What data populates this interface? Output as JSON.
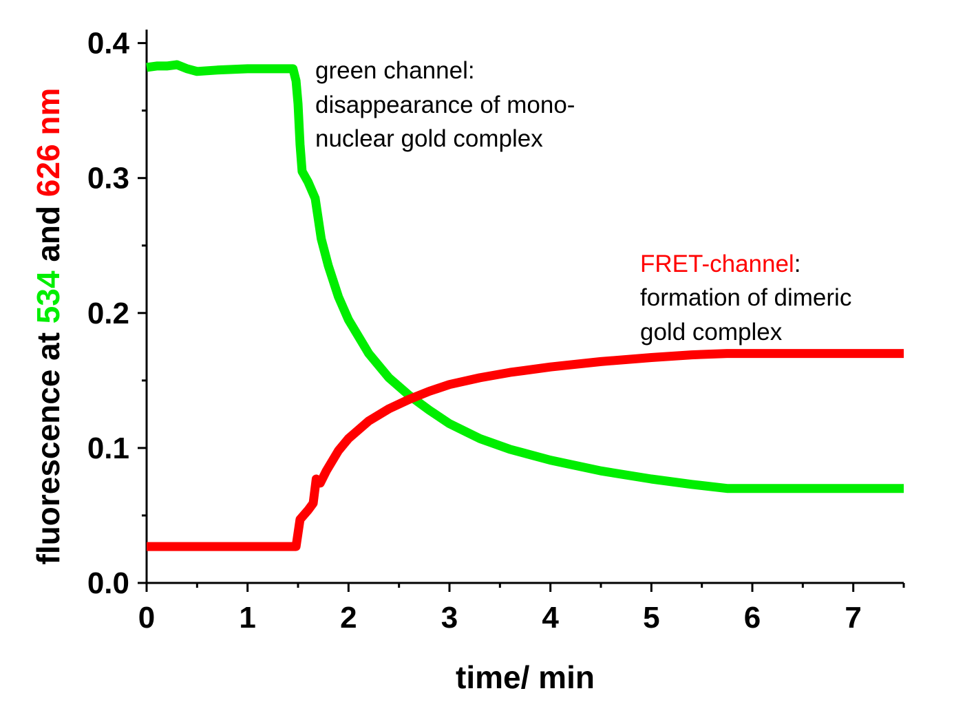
{
  "chart_data": {
    "type": "line",
    "xlabel": "time/ min",
    "ylabel": {
      "parts": [
        {
          "text": "fluorescence at ",
          "color": "#000000"
        },
        {
          "text": "534",
          "color": "#00ee00"
        },
        {
          "text": " and ",
          "color": "#000000"
        },
        {
          "text": "626 nm",
          "color": "#ff0000"
        }
      ]
    },
    "xlim": [
      0,
      7.5
    ],
    "ylim": [
      0,
      0.41
    ],
    "x_ticks": [
      0,
      1,
      2,
      3,
      4,
      5,
      6,
      7
    ],
    "x_tick_labels": [
      "0",
      "1",
      "2",
      "3",
      "4",
      "5",
      "6",
      "7"
    ],
    "y_ticks": [
      0.0,
      0.1,
      0.2,
      0.3,
      0.4
    ],
    "y_tick_labels": [
      "0.0",
      "0.1",
      "0.2",
      "0.3",
      "0.4"
    ],
    "grid": false,
    "legend": "none",
    "series": [
      {
        "name": "green channel",
        "color": "#00ee00",
        "points": [
          [
            0,
            0.382
          ],
          [
            0.1,
            0.383
          ],
          [
            0.2,
            0.383
          ],
          [
            0.3,
            0.384
          ],
          [
            0.4,
            0.381
          ],
          [
            0.5,
            0.379
          ],
          [
            0.7,
            0.38
          ],
          [
            1.0,
            0.381
          ],
          [
            1.3,
            0.381
          ],
          [
            1.45,
            0.381
          ],
          [
            1.48,
            0.372
          ],
          [
            1.5,
            0.355
          ],
          [
            1.52,
            0.325
          ],
          [
            1.54,
            0.305
          ],
          [
            1.6,
            0.297
          ],
          [
            1.67,
            0.285
          ],
          [
            1.73,
            0.255
          ],
          [
            1.8,
            0.235
          ],
          [
            1.9,
            0.212
          ],
          [
            2.0,
            0.195
          ],
          [
            2.2,
            0.17
          ],
          [
            2.4,
            0.152
          ],
          [
            2.6,
            0.139
          ],
          [
            2.8,
            0.128
          ],
          [
            3.0,
            0.118
          ],
          [
            3.3,
            0.107
          ],
          [
            3.6,
            0.099
          ],
          [
            4.0,
            0.091
          ],
          [
            4.5,
            0.083
          ],
          [
            5.0,
            0.077
          ],
          [
            5.4,
            0.073
          ],
          [
            5.75,
            0.07
          ],
          [
            6.2,
            0.07
          ],
          [
            7.0,
            0.07
          ],
          [
            7.5,
            0.07
          ]
        ]
      },
      {
        "name": "FRET-channel",
        "color": "#ff0000",
        "points": [
          [
            0,
            0.027
          ],
          [
            0.5,
            0.027
          ],
          [
            1.0,
            0.027
          ],
          [
            1.48,
            0.027
          ],
          [
            1.52,
            0.047
          ],
          [
            1.6,
            0.054
          ],
          [
            1.65,
            0.059
          ],
          [
            1.68,
            0.077
          ],
          [
            1.72,
            0.074
          ],
          [
            1.78,
            0.083
          ],
          [
            1.9,
            0.098
          ],
          [
            2.0,
            0.107
          ],
          [
            2.2,
            0.12
          ],
          [
            2.4,
            0.129
          ],
          [
            2.6,
            0.136
          ],
          [
            2.8,
            0.142
          ],
          [
            3.0,
            0.147
          ],
          [
            3.3,
            0.152
          ],
          [
            3.6,
            0.156
          ],
          [
            4.0,
            0.16
          ],
          [
            4.5,
            0.164
          ],
          [
            5.0,
            0.167
          ],
          [
            5.4,
            0.169
          ],
          [
            5.75,
            0.17
          ],
          [
            6.5,
            0.17
          ],
          [
            7.5,
            0.17
          ]
        ]
      }
    ],
    "annotations": [
      {
        "name": "green-annotation",
        "title": "green channel:",
        "title_color": "#00ee00",
        "lines": [
          "disappearance of mono-",
          "nuclear gold complex"
        ]
      },
      {
        "name": "fret-annotation",
        "title": "FRET-channel",
        "title_suffix": ":",
        "title_color": "#ff0000",
        "lines": [
          "formation of dimeric",
          "gold complex"
        ]
      }
    ]
  }
}
